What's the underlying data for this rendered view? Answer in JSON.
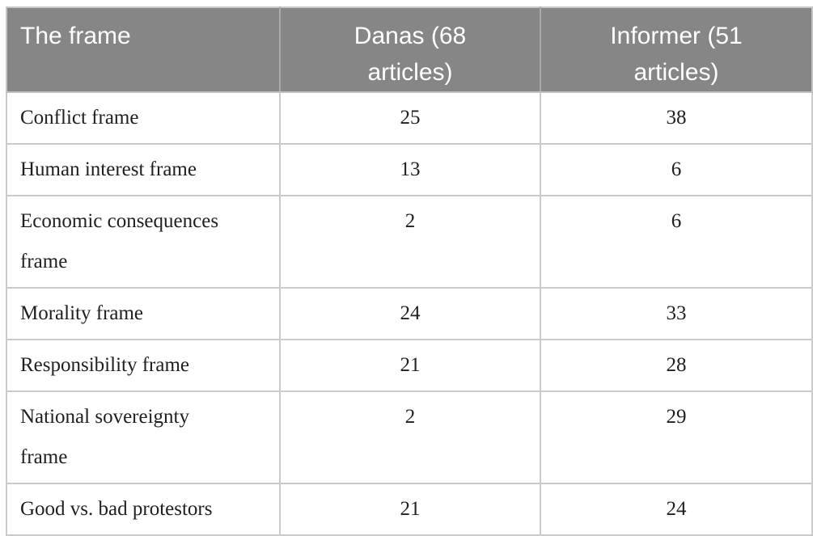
{
  "table": {
    "columns": [
      {
        "label": "The frame"
      },
      {
        "label": "Danas (68\narticles)"
      },
      {
        "label": "Informer (51\narticles)"
      }
    ],
    "rows": [
      {
        "frame": "Conflict frame",
        "danas": "25",
        "informer": "38"
      },
      {
        "frame": "Human interest frame",
        "danas": "13",
        "informer": "6"
      },
      {
        "frame": "Economic consequences\nframe",
        "danas": "2",
        "informer": "6"
      },
      {
        "frame": "Morality frame",
        "danas": "24",
        "informer": "33"
      },
      {
        "frame": "Responsibility frame",
        "danas": "21",
        "informer": "28"
      },
      {
        "frame": "National sovereignty\nframe",
        "danas": "2",
        "informer": "29"
      },
      {
        "frame": "Good vs. bad protestors",
        "danas": "21",
        "informer": "24"
      }
    ]
  },
  "colors": {
    "header_background": "#868686",
    "header_text": "#ffffff",
    "body_text": "#1f1f1f",
    "row_border": "#cbcbcb",
    "header_divider": "#aaaaaa"
  },
  "chart_data": {
    "type": "table",
    "columns": [
      "The frame",
      "Danas (68 articles)",
      "Informer (51 articles)"
    ],
    "categories": [
      "Conflict frame",
      "Human interest frame",
      "Economic consequences frame",
      "Morality frame",
      "Responsibility frame",
      "National sovereignty frame",
      "Good vs. bad protestors"
    ],
    "series": [
      {
        "name": "Danas (68 articles)",
        "values": [
          25,
          13,
          2,
          24,
          21,
          2,
          21
        ]
      },
      {
        "name": "Informer (51 articles)",
        "values": [
          38,
          6,
          6,
          33,
          28,
          29,
          24
        ]
      }
    ]
  }
}
